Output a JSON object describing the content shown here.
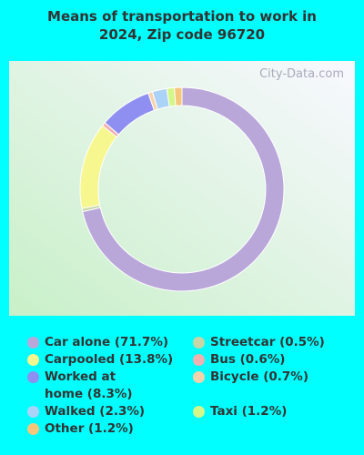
{
  "watermark": "City-Data.com",
  "chart_data": {
    "type": "donut",
    "title": "Means of transportation to work in 2024, Zip code 96720",
    "categories": [
      "Car alone (71.7%)",
      "Carpooled (13.8%)",
      "Worked at home (8.3%)",
      "Walked (2.3%)",
      "Other (1.2%)",
      "Streetcar (0.5%)",
      "Bus (0.6%)",
      "Bicycle (0.7%)",
      "Taxi (1.2%)"
    ],
    "values": [
      71.7,
      13.8,
      8.3,
      2.3,
      1.2,
      0.5,
      0.6,
      0.7,
      1.2
    ],
    "colors": [
      "#b9a7da",
      "#f6f78e",
      "#8e8ff0",
      "#aad3f7",
      "#f6c67a",
      "#c7d6a6",
      "#f0b1b0",
      "#f7d3ab",
      "#d4f78a"
    ]
  }
}
